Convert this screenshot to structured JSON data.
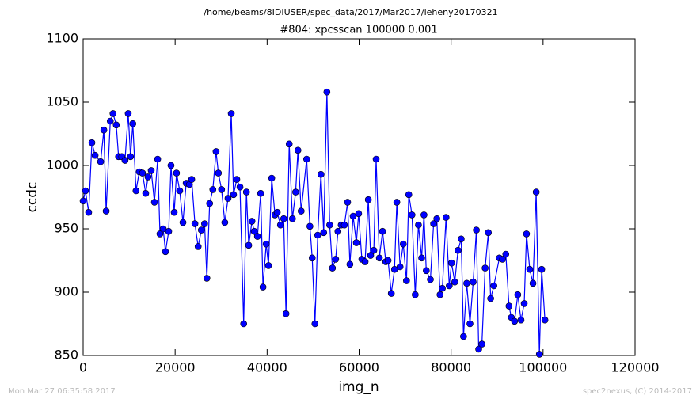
{
  "chart_data": {
    "type": "line",
    "title": "/home/beams/8IDIUSER/spec_data/2017/Mar2017/leheny20170321",
    "subtitle": "#804: xpcsscan 100000 0.001",
    "x_label": "img_n",
    "y_label": "ccdc",
    "footer_left": "Mon Mar 27 06:35:58 2017",
    "footer_right": "spec2nexus, (C) 2014-2017",
    "xlim": [
      0,
      120000
    ],
    "xticks": [
      0,
      20000,
      40000,
      60000,
      80000,
      100000,
      120000
    ],
    "ylim": [
      850,
      1100
    ],
    "yticks": [
      850,
      900,
      950,
      1000,
      1050,
      1100
    ],
    "grid": false,
    "series": [
      {
        "color": "#0000ff",
        "x": [
          0,
          500,
          1200,
          1900,
          2600,
          3800,
          4500,
          5000,
          5900,
          6500,
          7200,
          7700,
          8400,
          9100,
          9800,
          10300,
          10800,
          11500,
          12200,
          12900,
          13600,
          14100,
          14800,
          15500,
          16200,
          16700,
          17400,
          17900,
          18600,
          19100,
          19800,
          20300,
          21000,
          21700,
          22400,
          23100,
          23600,
          24300,
          25000,
          25700,
          26400,
          26900,
          27500,
          28200,
          28900,
          29400,
          30100,
          30800,
          31500,
          32200,
          32700,
          33400,
          34100,
          34900,
          35500,
          36000,
          36700,
          37200,
          37900,
          38600,
          39100,
          39800,
          40300,
          41000,
          41700,
          42200,
          42900,
          43600,
          44100,
          44800,
          45500,
          46200,
          46700,
          47400,
          48600,
          49300,
          49800,
          50400,
          51000,
          51700,
          52300,
          53000,
          53600,
          54200,
          54900,
          55400,
          56100,
          56800,
          57500,
          58000,
          58700,
          59400,
          59900,
          60600,
          61300,
          62000,
          62500,
          63200,
          63700,
          64400,
          65100,
          65800,
          66300,
          67000,
          67700,
          68200,
          68900,
          69600,
          70300,
          70800,
          71500,
          72200,
          72900,
          73600,
          74100,
          74600,
          75500,
          76200,
          76900,
          77600,
          78100,
          78900,
          79600,
          80100,
          80800,
          81500,
          82200,
          82700,
          83400,
          84100,
          84800,
          85500,
          86000,
          86700,
          87400,
          88100,
          88600,
          89300,
          90500,
          91200,
          91900,
          92600,
          93100,
          93800,
          94500,
          95200,
          95900,
          96400,
          97100,
          97800,
          98500,
          99200,
          99700,
          100400
        ],
        "values": [
          972,
          980,
          963,
          1018,
          1008,
          1003,
          1028,
          964,
          1035,
          1041,
          1032,
          1007,
          1007,
          1004,
          1041,
          1007,
          1033,
          980,
          995,
          994,
          978,
          991,
          996,
          971,
          1005,
          946,
          950,
          932,
          948,
          1000,
          963,
          994,
          980,
          955,
          986,
          985,
          989,
          954,
          936,
          949,
          954,
          911,
          970,
          981,
          1011,
          994,
          981,
          955,
          974,
          1041,
          977,
          989,
          983,
          875,
          979,
          937,
          956,
          948,
          944,
          978,
          904,
          938,
          921,
          990,
          961,
          963,
          953,
          958,
          883,
          1017,
          958,
          979,
          1012,
          964,
          1005,
          952,
          927,
          875,
          945,
          993,
          947,
          1058,
          953,
          919,
          926,
          948,
          953,
          953,
          971,
          922,
          960,
          939,
          962,
          926,
          924,
          973,
          929,
          933,
          1005,
          927,
          948,
          924,
          925,
          899,
          918,
          971,
          920,
          938,
          909,
          977,
          961,
          898,
          953,
          927,
          961,
          917,
          910,
          954,
          958,
          898,
          903,
          959,
          905,
          923,
          908,
          933,
          942,
          865,
          907,
          875,
          908,
          949,
          855,
          859,
          919,
          947,
          895,
          905,
          927,
          926,
          930,
          889,
          880,
          877,
          898,
          878,
          891,
          946,
          918,
          907,
          979,
          851,
          918,
          878
        ]
      }
    ]
  }
}
